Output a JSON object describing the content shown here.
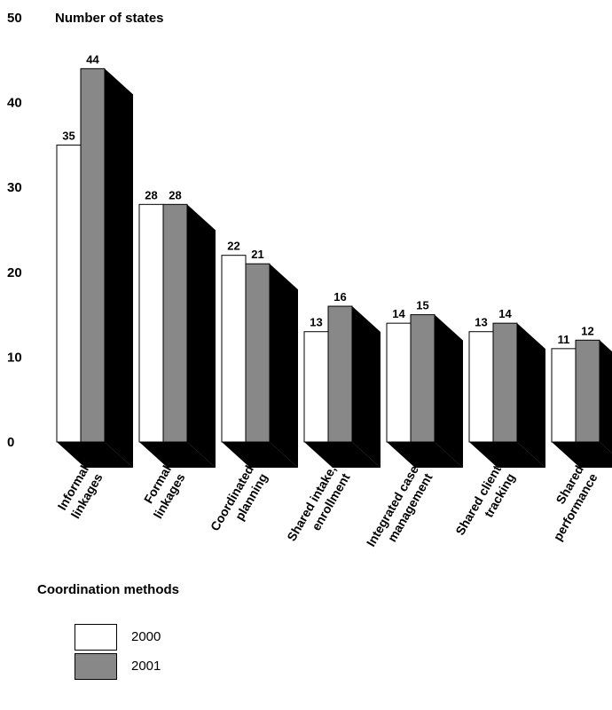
{
  "chart_data": {
    "type": "bar",
    "title": "",
    "ylabel": "Number of states",
    "xlabel": "Coordination methods",
    "ylim": [
      0,
      50
    ],
    "yticks": [
      0,
      10,
      20,
      30,
      40,
      50
    ],
    "categories": [
      [
        "Informal",
        "linkages"
      ],
      [
        "Formal",
        "linkages"
      ],
      [
        "Coordinated",
        "planning"
      ],
      [
        "Shared intake,",
        "enrollment"
      ],
      [
        "Integrated case",
        "management"
      ],
      [
        "Shared client",
        "tracking"
      ],
      [
        "Shared",
        "performance"
      ]
    ],
    "series": [
      {
        "name": "2000",
        "values": [
          35,
          28,
          22,
          13,
          14,
          13,
          11
        ],
        "color": "#ffffff"
      },
      {
        "name": "2001",
        "values": [
          44,
          28,
          21,
          16,
          15,
          14,
          12
        ],
        "color": "#888888"
      }
    ],
    "shadow_color": "#000000",
    "grid": false,
    "legend": "bottom-left"
  }
}
